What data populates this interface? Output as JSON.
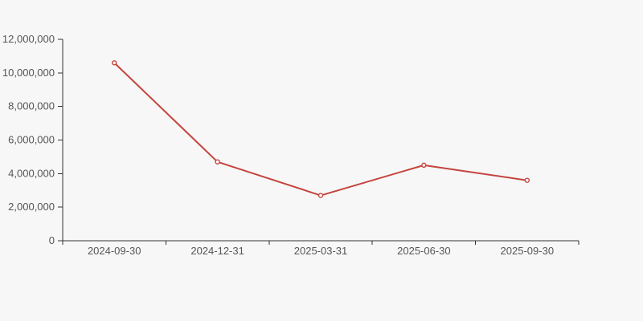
{
  "page": {
    "background_color": "#f7f7f7"
  },
  "chart_data": {
    "type": "line",
    "title": "",
    "xlabel": "",
    "ylabel": "",
    "categories": [
      "2024-09-30",
      "2024-12-31",
      "2025-03-31",
      "2025-06-30",
      "2025-09-30"
    ],
    "series": [
      {
        "name": "series-1",
        "values": [
          10600000,
          4700000,
          2700000,
          4500000,
          3600000
        ]
      }
    ],
    "ylim": [
      0,
      12000000
    ],
    "y_tick_step": 2000000,
    "y_tick_labels": [
      "0",
      "2,000,000",
      "4,000,000",
      "6,000,000",
      "8,000,000",
      "10,000,000",
      "12,000,000"
    ],
    "grid": "off",
    "legend": "none",
    "marker_style": "open-circle",
    "line_color": "#c5443e",
    "marker_fill": "#ffffff",
    "axis_color": "#333333",
    "label_color": "#555555",
    "background": "#f7f7f7"
  }
}
